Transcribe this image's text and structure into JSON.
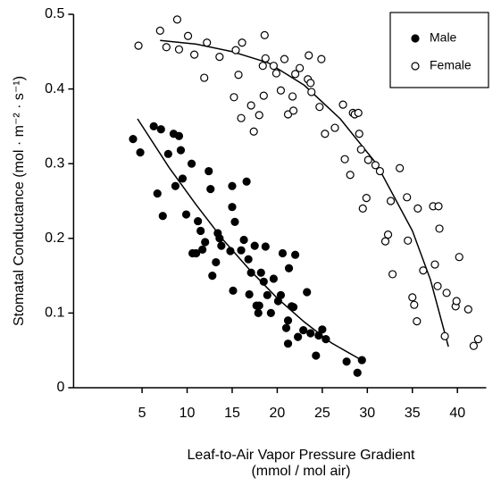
{
  "chart_data": {
    "type": "scatter",
    "xlabel": [
      "Leaf-to-Air  Vapor  Pressure  Gradient",
      "(mmol / mol air)"
    ],
    "ylabel": "Stomatal Conductance  (mol · m⁻² · s⁻¹)",
    "xlim": [
      -2.6,
      43.2
    ],
    "ylim": [
      0,
      0.5
    ],
    "xticks": [
      5,
      10,
      15,
      20,
      25,
      30,
      35,
      40
    ],
    "yticks": [
      0,
      0.1,
      0.2,
      0.3,
      0.4,
      0.5
    ],
    "legend": "upper right",
    "series": [
      {
        "name": "Male",
        "color": "#000000",
        "filled": true,
        "x": [
          4.0,
          4.8,
          6.3,
          6.7,
          7.1,
          7.3,
          7.9,
          8.5,
          8.7,
          9.1,
          9.3,
          9.5,
          9.9,
          10.5,
          10.6,
          11.0,
          11.2,
          11.5,
          11.7,
          12.0,
          12.4,
          12.6,
          12.8,
          13.2,
          13.4,
          13.6,
          13.8,
          14.8,
          15.0,
          15.0,
          15.1,
          15.3,
          16.0,
          16.3,
          16.6,
          16.8,
          16.9,
          17.1,
          17.5,
          17.7,
          17.9,
          18.0,
          18.2,
          18.5,
          18.7,
          18.9,
          19.3,
          19.6,
          20.1,
          20.4,
          20.6,
          21.0,
          21.2,
          21.2,
          21.3,
          21.6,
          21.8,
          22.0,
          22.3,
          22.9,
          23.3,
          23.7,
          24.3,
          24.6,
          25.0,
          25.4,
          27.7,
          28.9,
          29.4
        ],
        "values": [
          0.333,
          0.315,
          0.35,
          0.26,
          0.346,
          0.23,
          0.313,
          0.34,
          0.27,
          0.337,
          0.318,
          0.28,
          0.232,
          0.3,
          0.18,
          0.18,
          0.223,
          0.21,
          0.185,
          0.195,
          0.29,
          0.266,
          0.15,
          0.168,
          0.207,
          0.2,
          0.19,
          0.183,
          0.242,
          0.27,
          0.13,
          0.222,
          0.184,
          0.198,
          0.276,
          0.172,
          0.125,
          0.154,
          0.19,
          0.11,
          0.1,
          0.11,
          0.154,
          0.142,
          0.189,
          0.124,
          0.1,
          0.146,
          0.116,
          0.124,
          0.18,
          0.08,
          0.09,
          0.059,
          0.16,
          0.109,
          0.108,
          0.178,
          0.068,
          0.077,
          0.128,
          0.073,
          0.043,
          0.07,
          0.078,
          0.065,
          0.035,
          0.02,
          0.037
        ],
        "fit": {
          "x": [
            4.5,
            8,
            11,
            14,
            17,
            20,
            23,
            26,
            29.5
          ],
          "y": [
            0.36,
            0.295,
            0.245,
            0.198,
            0.157,
            0.12,
            0.088,
            0.06,
            0.036
          ]
        }
      },
      {
        "name": "Female",
        "color": "#000000",
        "filled": false,
        "x": [
          4.6,
          7.0,
          7.7,
          8.9,
          9.1,
          10.1,
          10.8,
          11.9,
          12.2,
          13.6,
          15.4,
          15.2,
          15.7,
          16.0,
          16.1,
          17.1,
          17.4,
          18.0,
          18.4,
          18.5,
          18.6,
          18.7,
          19.6,
          19.9,
          20.4,
          20.8,
          21.2,
          21.7,
          21.8,
          22.0,
          22.5,
          23.4,
          23.5,
          23.7,
          23.8,
          24.9,
          24.7,
          25.3,
          26.4,
          27.3,
          27.5,
          28.1,
          28.4,
          28.6,
          29.0,
          29.1,
          29.3,
          29.5,
          29.9,
          30.1,
          30.9,
          31.4,
          32.0,
          32.3,
          32.6,
          32.8,
          33.6,
          34.4,
          34.5,
          35.0,
          35.2,
          35.5,
          35.6,
          36.2,
          37.3,
          37.5,
          37.8,
          37.9,
          38.0,
          38.6,
          38.8,
          39.8,
          39.9,
          40.2,
          41.2,
          41.8,
          42.3
        ],
        "values": [
          0.458,
          0.478,
          0.456,
          0.493,
          0.453,
          0.471,
          0.446,
          0.415,
          0.462,
          0.443,
          0.452,
          0.389,
          0.419,
          0.361,
          0.462,
          0.378,
          0.343,
          0.365,
          0.431,
          0.391,
          0.472,
          0.441,
          0.431,
          0.421,
          0.398,
          0.44,
          0.366,
          0.39,
          0.371,
          0.42,
          0.428,
          0.413,
          0.445,
          0.408,
          0.396,
          0.44,
          0.376,
          0.34,
          0.348,
          0.379,
          0.306,
          0.285,
          0.368,
          0.366,
          0.368,
          0.34,
          0.319,
          0.24,
          0.254,
          0.305,
          0.298,
          0.29,
          0.196,
          0.205,
          0.25,
          0.152,
          0.294,
          0.255,
          0.197,
          0.121,
          0.111,
          0.089,
          0.24,
          0.157,
          0.243,
          0.165,
          0.136,
          0.243,
          0.213,
          0.069,
          0.127,
          0.109,
          0.116,
          0.175,
          0.105,
          0.056,
          0.065
        ],
        "fit": {
          "x": [
            7,
            11,
            15,
            19,
            23,
            27,
            31,
            35,
            37,
            39
          ],
          "y": [
            0.465,
            0.46,
            0.45,
            0.435,
            0.405,
            0.36,
            0.3,
            0.21,
            0.145,
            0.055
          ]
        }
      }
    ]
  }
}
